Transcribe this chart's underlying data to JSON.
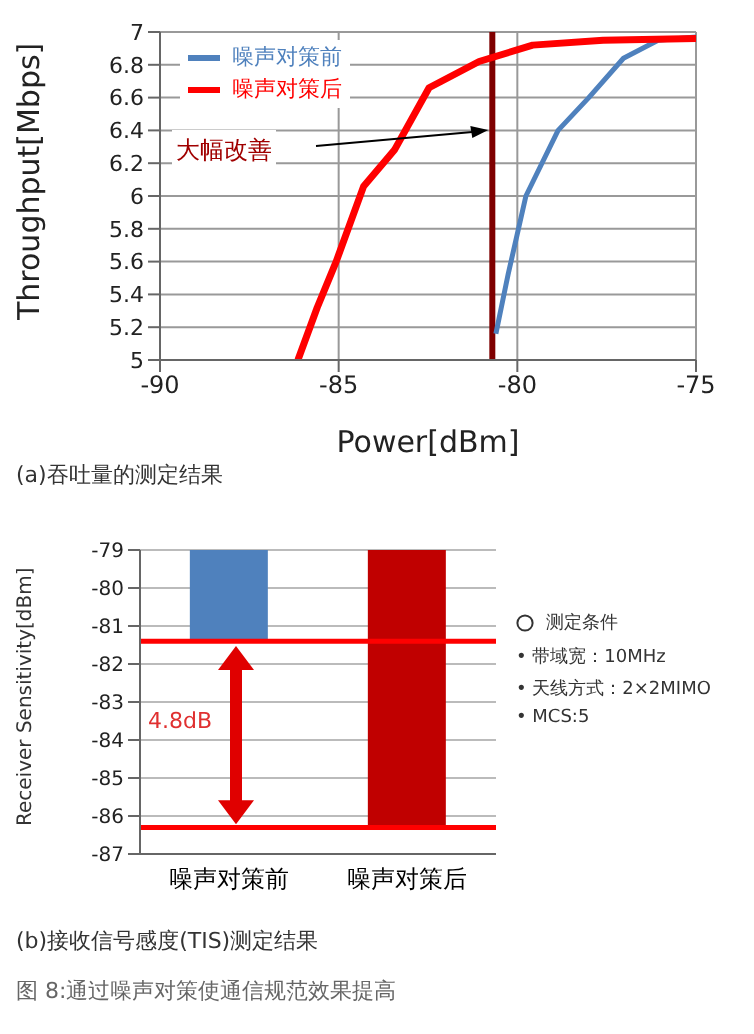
{
  "chart_data": [
    {
      "type": "line",
      "xlabel": "Power[dBm]",
      "ylabel": "Throughput[Mbps]",
      "xlim": [
        -90,
        -75
      ],
      "xticks": [
        -90,
        -85,
        -80,
        -75
      ],
      "ylim": [
        5,
        7
      ],
      "yticks": [
        5,
        5.2,
        5.4,
        5.6,
        5.8,
        6,
        6.2,
        6.4,
        6.6,
        6.8,
        7
      ],
      "grid": true,
      "legend": "top left",
      "marker": "none",
      "line_style": "solid",
      "series": [
        {
          "name": "噪声对策前",
          "color": "#4f81bd",
          "x": [
            -80.6,
            -80.26,
            -79.76,
            -78.86,
            -78.0,
            -77.03,
            -76.06,
            -75.0
          ],
          "values": [
            5.16,
            5.52,
            6.0,
            6.4,
            6.6,
            6.84,
            6.95,
            6.97
          ]
        },
        {
          "name": "噪声对策后",
          "color": "#ff0000",
          "x": [
            -86.14,
            -85.6,
            -85.07,
            -84.3,
            -83.44,
            -82.47,
            -81.07,
            -79.57,
            -77.6,
            -75.0
          ],
          "values": [
            5.0,
            5.32,
            5.6,
            6.06,
            6.28,
            6.66,
            6.82,
            6.92,
            6.95,
            6.96
          ]
        }
      ],
      "ref_lines": [
        {
          "axis": "x",
          "value": -80.7,
          "label": null,
          "color": "#7f0000"
        }
      ],
      "annotations": [
        "大幅改善",
        "(a)吞吐量的测定结果"
      ]
    },
    {
      "type": "bar",
      "ylabel": "Receiver Sensitivity[dBm]",
      "categories": [
        "噪声对策前",
        "噪声对策后"
      ],
      "values": [
        -81.4,
        -86.3
      ],
      "colors": [
        "#4f81bd",
        "#c00000"
      ],
      "ylim": [
        -87,
        -79
      ],
      "yticks": [
        -87,
        -86,
        -85,
        -84,
        -83,
        -82,
        -81,
        -80,
        -79
      ],
      "grid": "y",
      "ref_lines": [
        {
          "axis": "y",
          "value": -81.4,
          "label": null,
          "color": "#ff0000"
        },
        {
          "axis": "y",
          "value": -86.3,
          "label": null,
          "color": "#ff0000"
        }
      ],
      "annotations": [
        "4.8dB",
        "测定条件",
        "• 带域宽：10MHz",
        "• 天线方式：2×2MIMO",
        "• MCS:5",
        "(b)接收信号感度(TIS)测定结果",
        "图 8:通过噪声对策使通信规范效果提高"
      ]
    }
  ]
}
